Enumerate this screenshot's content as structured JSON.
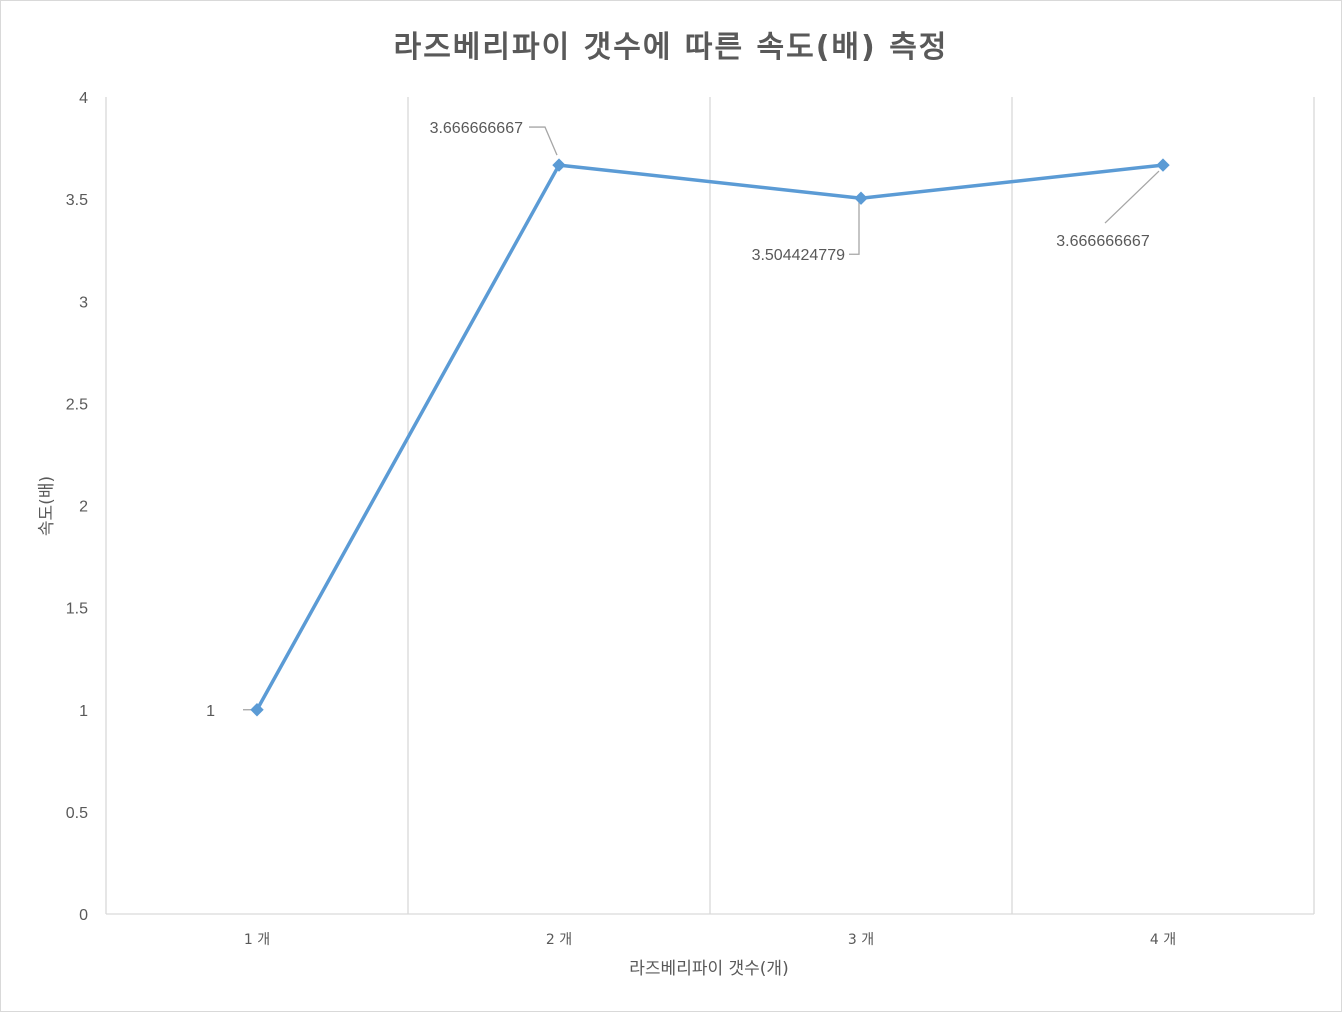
{
  "chart_data": {
    "type": "line",
    "title": "라즈베리파이 갯수에 따른 속도(배) 측정",
    "xlabel": "라즈베리파이 갯수(개)",
    "ylabel": "속도(배)",
    "categories": [
      "1 개",
      "2 개",
      "3 개",
      "4 개"
    ],
    "series": [
      {
        "values": [
          1,
          3.666666667,
          3.504424779,
          3.666666667
        ],
        "color": "#5b9bd5"
      }
    ],
    "data_labels": [
      "1",
      "3.666666667",
      "3.504424779",
      "3.666666667"
    ],
    "yticks": [
      "0",
      "0.5",
      "1",
      "1.5",
      "2",
      "2.5",
      "3",
      "3.5",
      "4"
    ],
    "ylim": [
      0,
      4
    ],
    "grid": "vertical",
    "legend": "none",
    "marker": "diamond"
  }
}
